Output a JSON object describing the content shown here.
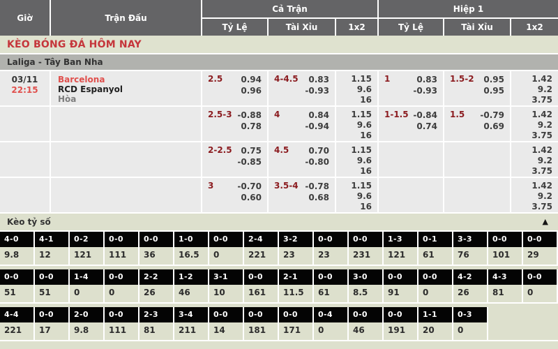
{
  "header": {
    "col_time": "Giờ",
    "col_match": "Trận Đấu",
    "col_full": "Cả Trận",
    "col_half": "Hiệp 1",
    "sub_handicap": "Tỷ Lệ",
    "sub_overunder": "Tài Xỉu",
    "sub_1x2": "1x2"
  },
  "title": "KÈO BÓNG ĐÁ HÔM NAY",
  "league": "Laliga - Tây Ban Nha",
  "colors": {
    "header_bg": "#646466",
    "title_red": "#c5363b",
    "accent_red": "#e04f4c",
    "handicap_maroon": "#8b1b1f",
    "row_bg": "#eaeaea",
    "league_bar_bg": "#b1b2ae",
    "section_green": "#dde0cd",
    "score_cell_bg": "#040404"
  },
  "odds_rows": [
    {
      "date": "03/11",
      "time": "22:15",
      "home": "Barcelona",
      "away": "RCD Espanyol",
      "draw": "Hòa",
      "full": {
        "hc": {
          "line": "2.5",
          "a": "0.94",
          "b": "0.96"
        },
        "ou": {
          "line": "4-4.5",
          "a": "0.83",
          "b": "-0.93"
        },
        "x12": {
          "home": "1.15",
          "away": "9.6",
          "draw": "16"
        }
      },
      "h1": {
        "hc": {
          "line": "1",
          "a": "0.83",
          "b": "-0.93"
        },
        "ou": {
          "line": "1.5-2",
          "a": "0.95",
          "b": "0.95"
        },
        "x12": {
          "home": "1.42",
          "away": "9.2",
          "draw": "3.75"
        }
      }
    },
    {
      "date": "",
      "time": "",
      "home": "",
      "away": "",
      "draw": "",
      "full": {
        "hc": {
          "line": "2.5-3",
          "a": "-0.88",
          "b": "0.78"
        },
        "ou": {
          "line": "4",
          "a": "0.84",
          "b": "-0.94"
        },
        "x12": {
          "home": "1.15",
          "away": "9.6",
          "draw": "16"
        }
      },
      "h1": {
        "hc": {
          "line": "1-1.5",
          "a": "-0.84",
          "b": "0.74"
        },
        "ou": {
          "line": "1.5",
          "a": "-0.79",
          "b": "0.69"
        },
        "x12": {
          "home": "1.42",
          "away": "9.2",
          "draw": "3.75"
        }
      }
    },
    {
      "date": "",
      "time": "",
      "home": "",
      "away": "",
      "draw": "",
      "full": {
        "hc": {
          "line": "2-2.5",
          "a": "0.75",
          "b": "-0.85"
        },
        "ou": {
          "line": "4.5",
          "a": "0.70",
          "b": "-0.80"
        },
        "x12": {
          "home": "1.15",
          "away": "9.6",
          "draw": "16"
        }
      },
      "h1": {
        "hc": {
          "line": "",
          "a": "",
          "b": ""
        },
        "ou": {
          "line": "",
          "a": "",
          "b": ""
        },
        "x12": {
          "home": "1.42",
          "away": "9.2",
          "draw": "3.75"
        }
      }
    },
    {
      "date": "",
      "time": "",
      "home": "",
      "away": "",
      "draw": "",
      "full": {
        "hc": {
          "line": "3",
          "a": "-0.70",
          "b": "0.60"
        },
        "ou": {
          "line": "3.5-4",
          "a": "-0.78",
          "b": "0.68"
        },
        "x12": {
          "home": "1.15",
          "away": "9.6",
          "draw": "16"
        }
      },
      "h1": {
        "hc": {
          "line": "",
          "a": "",
          "b": ""
        },
        "ou": {
          "line": "",
          "a": "",
          "b": ""
        },
        "x12": {
          "home": "1.42",
          "away": "9.2",
          "draw": "3.75"
        }
      }
    }
  ],
  "score_section": {
    "title": "Kèo tỷ số",
    "collapse_icon": "▲",
    "row1": [
      {
        "cls": "scell",
        "score": "4-0",
        "odds": "9.8"
      },
      {
        "cls": "scell",
        "score": "4-1",
        "odds": "12"
      },
      {
        "cls": "scell",
        "score": "0-2",
        "odds": "121"
      },
      {
        "cls": "scell",
        "score": "0-0",
        "odds": "111"
      },
      {
        "cls": "scell",
        "score": "0-0",
        "odds": "36"
      },
      {
        "cls": "scell",
        "score": "1-0",
        "odds": "16.5"
      },
      {
        "cls": "scell",
        "score": "0-0",
        "odds": "0"
      },
      {
        "cls": "scell",
        "score": "2-4",
        "odds": "221"
      },
      {
        "cls": "scell",
        "score": "3-2",
        "odds": "23"
      },
      {
        "cls": "scell",
        "score": "0-0",
        "odds": "23"
      },
      {
        "cls": "scell",
        "score": "0-0",
        "odds": "231"
      },
      {
        "cls": "scell",
        "score": "1-3",
        "odds": "121"
      },
      {
        "cls": "scell",
        "score": "0-1",
        "odds": "61"
      },
      {
        "cls": "scell",
        "score": "3-3",
        "odds": "76"
      },
      {
        "cls": "scell",
        "score": "0-0",
        "odds": "101"
      },
      {
        "cls": "scell",
        "score": "0-0",
        "odds": "29"
      }
    ],
    "row2": [
      {
        "cls": "scell",
        "score": "0-0",
        "odds": "51"
      },
      {
        "cls": "scell",
        "score": "0-0",
        "odds": "51"
      },
      {
        "cls": "scell",
        "score": "1-4",
        "odds": "0"
      },
      {
        "cls": "scell",
        "score": "0-0",
        "odds": "0"
      },
      {
        "cls": "scell",
        "score": "2-2",
        "odds": "26"
      },
      {
        "cls": "scell",
        "score": "1-2",
        "odds": "46"
      },
      {
        "cls": "scell",
        "score": "3-1",
        "odds": "10"
      },
      {
        "cls": "scell",
        "score": "0-0",
        "odds": "161"
      },
      {
        "cls": "scell",
        "score": "2-1",
        "odds": "11.5"
      },
      {
        "cls": "scell",
        "score": "0-0",
        "odds": "61"
      },
      {
        "cls": "scell",
        "score": "3-0",
        "odds": "8.5"
      },
      {
        "cls": "scell",
        "score": "0-0",
        "odds": "91"
      },
      {
        "cls": "scell",
        "score": "0-0",
        "odds": "0"
      },
      {
        "cls": "scell",
        "score": "4-2",
        "odds": "26"
      },
      {
        "cls": "scell",
        "score": "4-3",
        "odds": "81"
      },
      {
        "cls": "scell",
        "score": "0-0",
        "odds": "0"
      }
    ],
    "row3": [
      {
        "cls": "scell",
        "score": "4-4",
        "odds": "221"
      },
      {
        "cls": "scell",
        "score": "0-0",
        "odds": "17"
      },
      {
        "cls": "scell",
        "score": "2-0",
        "odds": "9.8"
      },
      {
        "cls": "scell",
        "score": "0-0",
        "odds": "111"
      },
      {
        "cls": "scell",
        "score": "2-3",
        "odds": "81"
      },
      {
        "cls": "scell",
        "score": "3-4",
        "odds": "211"
      },
      {
        "cls": "scell",
        "score": "0-0",
        "odds": "14"
      },
      {
        "cls": "scell",
        "score": "0-0",
        "odds": "181"
      },
      {
        "cls": "scell",
        "score": "0-0",
        "odds": "171"
      },
      {
        "cls": "scell",
        "score": "0-4",
        "odds": "0"
      },
      {
        "cls": "scell",
        "score": "0-0",
        "odds": "46"
      },
      {
        "cls": "scell",
        "score": "0-0",
        "odds": "191"
      },
      {
        "cls": "scell",
        "score": "1-1",
        "odds": "20"
      },
      {
        "cls": "scell",
        "score": "0-3",
        "odds": "0"
      },
      {
        "cls": "scell blank",
        "score": "",
        "odds": ""
      },
      {
        "cls": "scell blank",
        "score": "",
        "odds": ""
      }
    ]
  }
}
